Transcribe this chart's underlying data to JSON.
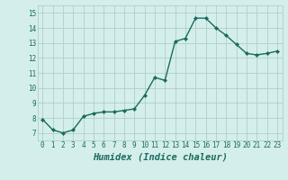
{
  "x": [
    0,
    1,
    2,
    3,
    4,
    5,
    6,
    7,
    8,
    9,
    10,
    11,
    12,
    13,
    14,
    15,
    16,
    17,
    18,
    19,
    20,
    21,
    22,
    23
  ],
  "y": [
    7.9,
    7.2,
    7.0,
    7.2,
    8.1,
    8.3,
    8.4,
    8.4,
    8.5,
    8.6,
    9.5,
    10.7,
    10.5,
    13.1,
    13.3,
    14.65,
    14.65,
    14.0,
    13.5,
    12.9,
    12.3,
    12.2,
    12.3,
    12.45
  ],
  "line_color": "#1a6b5e",
  "marker": "D",
  "marker_size": 2.0,
  "bg_color": "#d4eeeb",
  "grid_color": "#b0ceca",
  "xlabel": "Humidex (Indice chaleur)",
  "xlim": [
    -0.5,
    23.5
  ],
  "ylim": [
    6.5,
    15.5
  ],
  "yticks": [
    7,
    8,
    9,
    10,
    11,
    12,
    13,
    14,
    15
  ],
  "xticks": [
    0,
    1,
    2,
    3,
    4,
    5,
    6,
    7,
    8,
    9,
    10,
    11,
    12,
    13,
    14,
    15,
    16,
    17,
    18,
    19,
    20,
    21,
    22,
    23
  ],
  "tick_fontsize": 5.5,
  "xlabel_fontsize": 7.5,
  "linewidth": 1.0
}
